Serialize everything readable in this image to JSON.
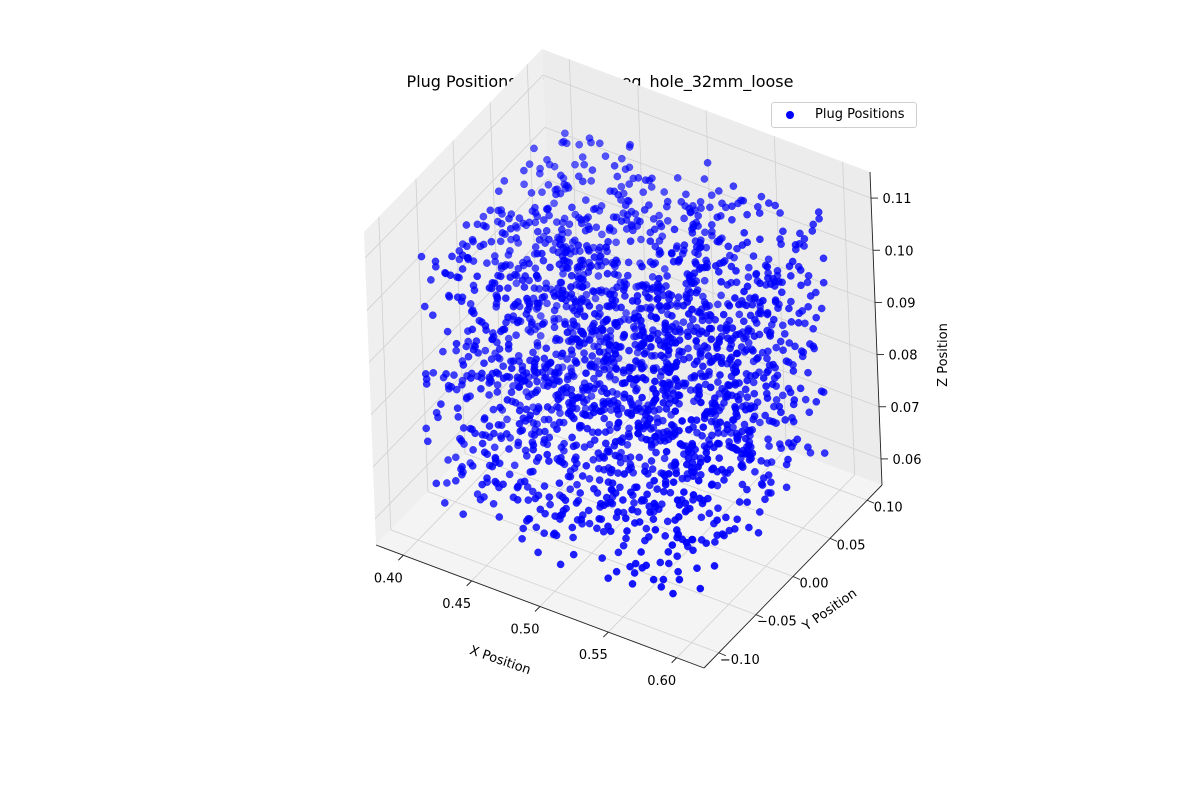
{
  "chart_data": {
    "type": "scatter",
    "title": "Plug Positions for square_peg_hole_32mm_loose",
    "xlabel": "X Position",
    "ylabel": "Y Position",
    "zlabel": "Z Position",
    "xlim": [
      0.38,
      0.62
    ],
    "ylim": [
      -0.12,
      0.12
    ],
    "zlim": [
      0.055,
      0.115
    ],
    "xticks": [
      "0.40",
      "0.45",
      "0.50",
      "0.55",
      "0.60"
    ],
    "yticks": [
      "−0.10",
      "−0.05",
      "0.00",
      "0.05",
      "0.10"
    ],
    "zticks": [
      "0.06",
      "0.07",
      "0.08",
      "0.09",
      "0.10",
      "0.11"
    ],
    "grid": true,
    "legend_position": "top-right",
    "series": [
      {
        "name": "Plug Positions",
        "color": "#0000ff",
        "distribution": "uniform random",
        "point_count": 2000,
        "x_range": [
          0.4,
          0.6
        ],
        "y_range": [
          -0.1,
          0.1
        ],
        "z_range": [
          0.06,
          0.11
        ]
      }
    ]
  }
}
